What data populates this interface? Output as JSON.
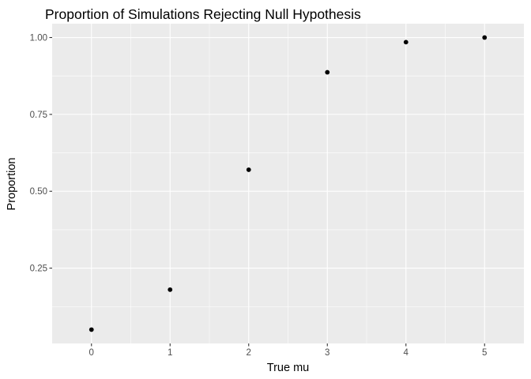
{
  "chart_data": {
    "type": "scatter",
    "title": "Proportion of Simulations Rejecting Null Hypothesis",
    "xlabel": "True mu",
    "ylabel": "Proportion",
    "x": [
      0,
      1,
      2,
      3,
      4,
      5
    ],
    "y": [
      0.05,
      0.18,
      0.57,
      0.887,
      0.985,
      1.0
    ],
    "xlim": [
      -0.5,
      5.5
    ],
    "ylim": [
      0.005,
      1.045
    ],
    "x_ticks": [
      "0",
      "1",
      "2",
      "3",
      "4",
      "5"
    ],
    "y_ticks": [
      "0.25",
      "0.50",
      "0.75",
      "1.00"
    ],
    "grid": true,
    "panel_color": "#ebebeb",
    "point_color": "#000000"
  }
}
